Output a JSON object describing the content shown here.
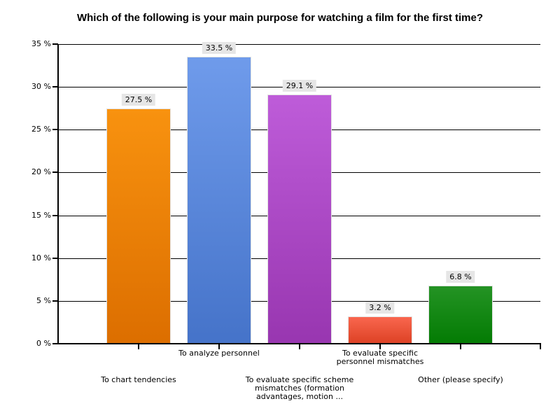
{
  "title": "Which of the following is your main purpose for watching a film for the first time?",
  "chart_data": {
    "type": "bar",
    "title": "Which of the following is your main purpose for watching a film for the first time?",
    "categories": [
      "To chart tendencies",
      "To analyze personnel",
      "To evaluate specific scheme mismatches (formation advantages, motion ...",
      "To evaluate specific personnel mismatches",
      "Other (please specify)"
    ],
    "category_display_lines": [
      [
        "To chart tendencies"
      ],
      [
        "To analyze personnel"
      ],
      [
        "To evaluate specific scheme",
        "mismatches (formation",
        "advantages, motion ..."
      ],
      [
        "To evaluate specific",
        "personnel mismatches"
      ],
      [
        "Other (please specify)"
      ]
    ],
    "values": [
      27.5,
      33.5,
      29.1,
      3.2,
      6.8
    ],
    "value_labels": [
      "27.5 %",
      "33.5 %",
      "29.1 %",
      "3.2 %",
      "6.8 %"
    ],
    "unit": "%",
    "ylim": [
      0,
      35
    ],
    "y_tick_step": 5,
    "y_tick_values": [
      35,
      30,
      25,
      20,
      15,
      10,
      5,
      0
    ],
    "y_tick_labels": [
      "35 %",
      "30 %",
      "25 %",
      "20 %",
      "15 %",
      "10 %",
      "5 %",
      "0 %"
    ],
    "grid": true,
    "legend": false,
    "background": "#FFFFFF",
    "axis_color": "#000000",
    "grid_color": "#000000",
    "value_label_bg": "#E6E6E6",
    "value_label_color": "#000000",
    "bar_gradients": [
      {
        "top": "#F8920F",
        "bottom": "#DC6E00"
      },
      {
        "top": "#6F9BEB",
        "bottom": "#4573C9"
      },
      {
        "top": "#BE5CD9",
        "bottom": "#9836B0"
      },
      {
        "top": "#F9664E",
        "bottom": "#DC4124"
      },
      {
        "top": "#249324",
        "bottom": "#037B03"
      }
    ]
  }
}
